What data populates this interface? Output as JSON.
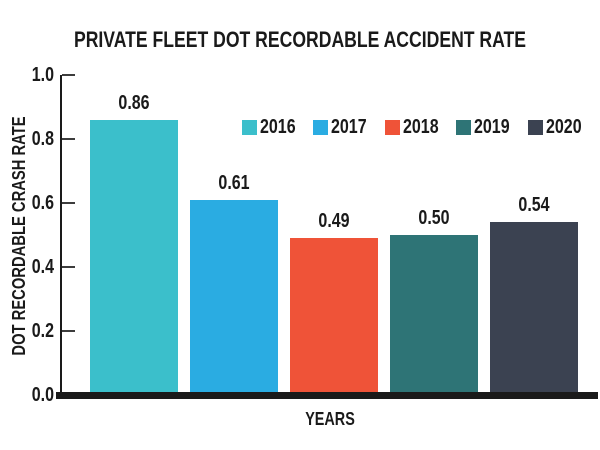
{
  "chart_data": {
    "type": "bar",
    "title": "PRIVATE FLEET DOT RECORDABLE ACCIDENT RATE",
    "xlabel": "YEARS",
    "ylabel": "DOT RECORDABLE CRASH RATE",
    "categories": [
      "2016",
      "2017",
      "2018",
      "2019",
      "2020"
    ],
    "values": [
      0.86,
      0.61,
      0.49,
      0.5,
      0.54
    ],
    "value_labels": [
      "0.86",
      "0.61",
      "0.49",
      "0.50",
      "0.54"
    ],
    "colors": [
      "#3bbfcb",
      "#2aace2",
      "#ef5338",
      "#2e7476",
      "#3b4251"
    ],
    "ylim": [
      0.0,
      1.0
    ],
    "yticks": [
      "1.0",
      "0.8",
      "0.6",
      "0.4",
      "0.2",
      "0.0"
    ],
    "grid": false,
    "legend": {
      "position": "upper-right",
      "entries": [
        "2016",
        "2017",
        "2018",
        "2019",
        "2020"
      ]
    },
    "axis_color": "#1a1a1a",
    "text_color": "#1a1a1a"
  }
}
